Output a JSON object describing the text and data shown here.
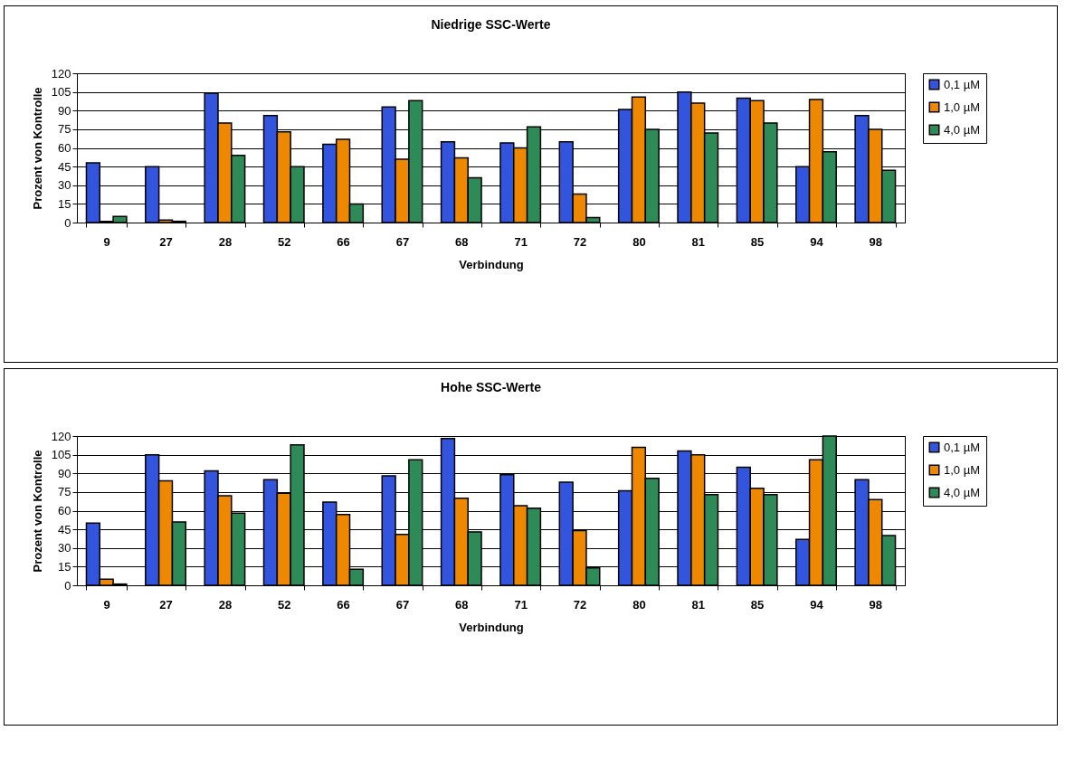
{
  "chart_data": [
    {
      "type": "bar",
      "title": "Niedrige SSC-Werte",
      "xlabel": "Verbindung",
      "ylabel": "Prozent von Kontrolle",
      "categories": [
        "9",
        "27",
        "28",
        "52",
        "66",
        "67",
        "68",
        "71",
        "72",
        "80",
        "81",
        "85",
        "94",
        "98"
      ],
      "series": [
        {
          "name": "0,1 µM",
          "color": "#3355dd",
          "values": [
            48,
            45,
            104,
            86,
            63,
            93,
            65,
            64,
            65,
            91,
            105,
            100,
            45,
            86
          ]
        },
        {
          "name": "1,0 µM",
          "color": "#ee8800",
          "values": [
            1,
            2,
            80,
            73,
            67,
            51,
            52,
            60,
            23,
            101,
            96,
            98,
            99,
            75
          ]
        },
        {
          "name": "4,0 µM",
          "color": "#2e8b57",
          "values": [
            5,
            1,
            54,
            45,
            15,
            98,
            36,
            77,
            4,
            75,
            72,
            80,
            57,
            42
          ]
        }
      ],
      "ylim": [
        0,
        120
      ],
      "yticks": [
        0,
        15,
        30,
        45,
        60,
        75,
        90,
        105,
        120
      ],
      "grid": "y",
      "legend": "right"
    },
    {
      "type": "bar",
      "title": "Hohe SSC-Werte",
      "xlabel": "Verbindung",
      "ylabel": "Prozent von Kontrolle",
      "categories": [
        "9",
        "27",
        "28",
        "52",
        "66",
        "67",
        "68",
        "71",
        "72",
        "80",
        "81",
        "85",
        "94",
        "98"
      ],
      "series": [
        {
          "name": "0,1 µM",
          "color": "#3355dd",
          "values": [
            50,
            105,
            92,
            85,
            67,
            88,
            118,
            89,
            83,
            76,
            108,
            95,
            37,
            85
          ]
        },
        {
          "name": "1,0 µM",
          "color": "#ee8800",
          "values": [
            5,
            84,
            72,
            74,
            57,
            41,
            70,
            64,
            44,
            111,
            105,
            78,
            101,
            69
          ]
        },
        {
          "name": "4,0 µM",
          "color": "#2e8b57",
          "values": [
            1,
            51,
            58,
            113,
            13,
            101,
            43,
            62,
            14,
            86,
            73,
            73,
            120,
            40
          ]
        }
      ],
      "ylim": [
        0,
        120
      ],
      "yticks": [
        0,
        15,
        30,
        45,
        60,
        75,
        90,
        105,
        120
      ],
      "grid": "y",
      "legend": "right"
    }
  ]
}
